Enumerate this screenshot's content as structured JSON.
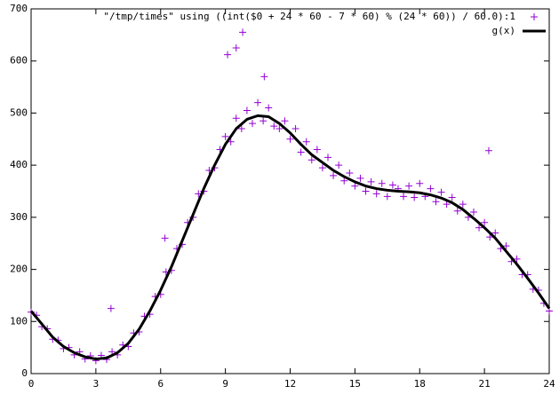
{
  "chart_data": {
    "type": "scatter",
    "xlim": [
      0,
      24
    ],
    "xticks": [
      0,
      3,
      6,
      9,
      12,
      15,
      18,
      21,
      24
    ],
    "ylim": [
      0,
      700
    ],
    "yticks": [
      0,
      100,
      200,
      300,
      400,
      500,
      600,
      700
    ],
    "legend": "top-right",
    "series": [
      {
        "name": "\"/tmp/times\" using ((int($0 + 24 * 60 - 7 * 60) % (24 * 60)) / 60.0):1",
        "style": "points",
        "color": "#9400d3",
        "x": [
          0,
          0.25,
          0.5,
          0.75,
          1,
          1.25,
          1.5,
          1.75,
          2,
          2.25,
          2.5,
          2.75,
          3,
          3.25,
          3.5,
          3.75,
          4,
          4.25,
          4.5,
          4.75,
          5,
          5.25,
          5.5,
          5.75,
          6,
          6.25,
          6.5,
          6.75,
          7,
          7.25,
          7.5,
          7.75,
          8,
          8.25,
          8.5,
          8.75,
          9,
          9.25,
          9.5,
          9.75,
          10,
          10.25,
          10.5,
          10.75,
          11,
          11.25,
          11.5,
          11.75,
          12,
          12.25,
          12.5,
          12.75,
          13,
          13.25,
          13.5,
          13.75,
          14,
          14.25,
          14.5,
          14.75,
          15,
          15.25,
          15.5,
          15.75,
          16,
          16.25,
          16.5,
          16.75,
          17,
          17.25,
          17.5,
          17.75,
          18,
          18.25,
          18.5,
          18.75,
          19,
          19.25,
          19.5,
          19.75,
          20,
          20.25,
          20.5,
          20.75,
          21,
          21.25,
          21.5,
          21.75,
          22,
          22.25,
          22.5,
          22.75,
          23,
          23.25,
          23.5,
          23.75,
          24,
          9.8,
          9.5,
          9.1,
          21.2,
          6.2,
          3.7,
          10.8
        ],
        "y": [
          118,
          112,
          90,
          86,
          66,
          64,
          48,
          50,
          36,
          42,
          28,
          34,
          25,
          35,
          27,
          42,
          36,
          55,
          52,
          78,
          80,
          110,
          114,
          148,
          152,
          195,
          198,
          240,
          248,
          290,
          300,
          345,
          350,
          390,
          395,
          430,
          455,
          445,
          490,
          470,
          505,
          480,
          520,
          485,
          510,
          475,
          470,
          485,
          450,
          470,
          425,
          445,
          410,
          430,
          395,
          415,
          380,
          400,
          370,
          385,
          360,
          375,
          350,
          368,
          345,
          365,
          340,
          362,
          355,
          340,
          360,
          338,
          365,
          340,
          355,
          330,
          348,
          325,
          338,
          312,
          325,
          300,
          310,
          280,
          290,
          262,
          270,
          240,
          245,
          215,
          220,
          190,
          190,
          162,
          160,
          135,
          120,
          655,
          625,
          612,
          428,
          260,
          125,
          570
        ]
      },
      {
        "name": "g(x)",
        "style": "line",
        "color": "#000000",
        "x": [
          0,
          0.5,
          1,
          1.5,
          2,
          2.5,
          3,
          3.5,
          4,
          4.5,
          5,
          5.5,
          6,
          6.5,
          7,
          7.5,
          8,
          8.5,
          9,
          9.5,
          10,
          10.5,
          11,
          11.5,
          12,
          12.5,
          13,
          13.5,
          14,
          14.5,
          15,
          15.5,
          16,
          16.5,
          17,
          17.5,
          18,
          18.5,
          19,
          19.5,
          20,
          20.5,
          21,
          21.5,
          22,
          22.5,
          23,
          23.5,
          24
        ],
        "y": [
          120,
          95,
          70,
          52,
          40,
          32,
          28,
          30,
          40,
          58,
          85,
          120,
          160,
          205,
          255,
          305,
          355,
          400,
          440,
          470,
          488,
          495,
          493,
          480,
          462,
          440,
          420,
          405,
          390,
          378,
          368,
          360,
          355,
          352,
          350,
          349,
          347,
          343,
          337,
          328,
          315,
          298,
          280,
          260,
          235,
          210,
          183,
          155,
          125
        ]
      }
    ]
  }
}
